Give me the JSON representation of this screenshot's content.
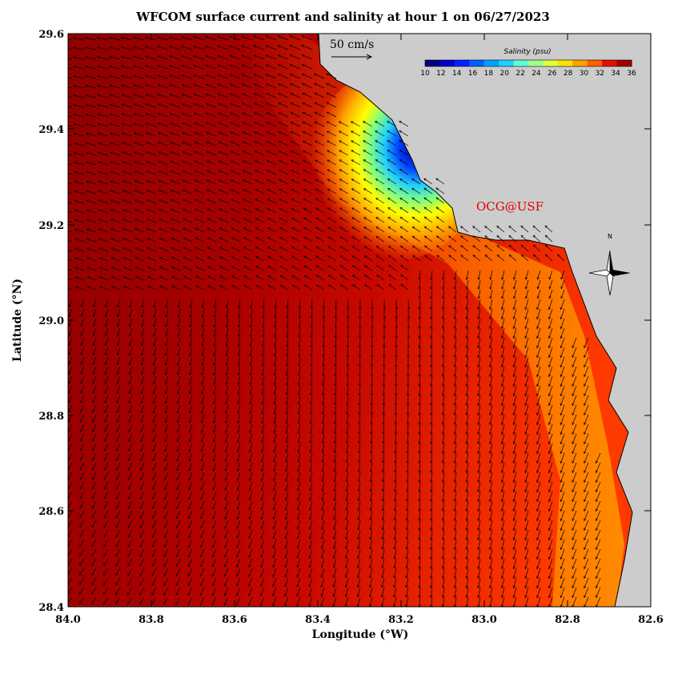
{
  "title": "WFCOM surface current and salinity at hour 1 on 06/27/2023",
  "credit": "OCG@USF",
  "xlabel": "Longitude (°W)",
  "ylabel": "Latitude (°N)",
  "x_ticks": [
    "84.0",
    "83.8",
    "83.6",
    "83.4",
    "83.2",
    "83.0",
    "82.8",
    "82.6"
  ],
  "y_ticks": [
    "29.6",
    "29.4",
    "29.2",
    "29.0",
    "28.8",
    "28.6",
    "28.4"
  ],
  "scale_label": "50 cm/s",
  "colorbar": {
    "title": "Salinity (psu)",
    "ticks": [
      "10",
      "12",
      "14",
      "16",
      "18",
      "20",
      "22",
      "24",
      "26",
      "28",
      "30",
      "32",
      "34",
      "36"
    ],
    "colors": [
      "#00007f",
      "#0000c8",
      "#0020ff",
      "#0060ff",
      "#00a0ff",
      "#20d0ff",
      "#60ffd0",
      "#a0ff90",
      "#e0ff40",
      "#ffe000",
      "#ffa000",
      "#ff6000",
      "#e01000",
      "#a00000"
    ]
  },
  "compass_label": "N",
  "colors": {
    "land": "#cccccc",
    "water_high": "#b00000",
    "arrow": "#000000"
  }
}
